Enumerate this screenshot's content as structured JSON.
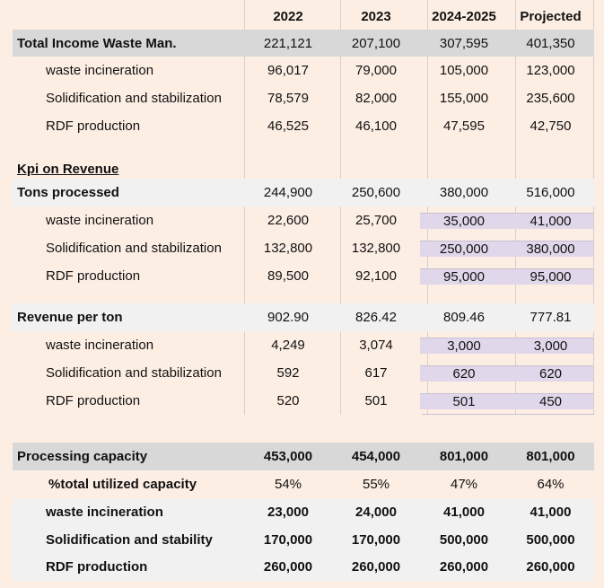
{
  "headers": [
    "2022",
    "2023",
    "2024-2025",
    "Projected"
  ],
  "income": {
    "total": {
      "label": "Total Income Waste Man.",
      "values": [
        "221,121",
        "207,100",
        "307,595",
        "401,350"
      ]
    },
    "rows": [
      {
        "label": "waste incineration",
        "values": [
          "96,017",
          "79,000",
          "105,000",
          "123,000"
        ]
      },
      {
        "label": "Solidification and stabilization",
        "values": [
          "78,579",
          "82,000",
          "155,000",
          "235,600"
        ]
      },
      {
        "label": "RDF production",
        "values": [
          "46,525",
          "46,100",
          "47,595",
          "42,750"
        ]
      }
    ]
  },
  "kpi_title": "Kpi on Revenue",
  "tons": {
    "total": {
      "label": "Tons processed",
      "values": [
        "244,900",
        "250,600",
        "380,000",
        "516,000"
      ]
    },
    "rows": [
      {
        "label": "waste incineration",
        "values": [
          "22,600",
          "25,700",
          "35,000",
          "41,000"
        ]
      },
      {
        "label": "Solidification and stabilization",
        "values": [
          "132,800",
          "132,800",
          "250,000",
          "380,000"
        ]
      },
      {
        "label": "RDF production",
        "values": [
          "89,500",
          "92,100",
          "95,000",
          "95,000"
        ]
      }
    ]
  },
  "revenue": {
    "total": {
      "label": "Revenue per ton",
      "values": [
        "902.90",
        "826.42",
        "809.46",
        "777.81"
      ]
    },
    "rows": [
      {
        "label": "waste incineration",
        "values": [
          "4,249",
          "3,074",
          "3,000",
          "3,000"
        ]
      },
      {
        "label": "Solidification and stabilization",
        "values": [
          "592",
          "617",
          "620",
          "620"
        ]
      },
      {
        "label": "RDF production",
        "values": [
          "520",
          "501",
          "501",
          "450"
        ]
      }
    ]
  },
  "capacity": {
    "total": {
      "label": "Processing capacity",
      "values": [
        "453,000",
        "454,000",
        "801,000",
        "801,000"
      ]
    },
    "utilized": {
      "label": "%total utilized capacity",
      "values": [
        "54%",
        "55%",
        "47%",
        "64%"
      ]
    },
    "rows": [
      {
        "label": "waste incineration",
        "values": [
          "23,000",
          "24,000",
          "41,000",
          "41,000"
        ]
      },
      {
        "label": "Solidification and stability",
        "values": [
          "170,000",
          "170,000",
          "500,000",
          "500,000"
        ]
      },
      {
        "label": "RDF production",
        "values": [
          "260,000",
          "260,000",
          "260,000",
          "260,000"
        ]
      }
    ]
  },
  "colors": {
    "background": "#fdeee4",
    "highlight": "#e1d7ea",
    "band_dark": "#d8d8d8",
    "band_light": "#f1f1f1"
  }
}
